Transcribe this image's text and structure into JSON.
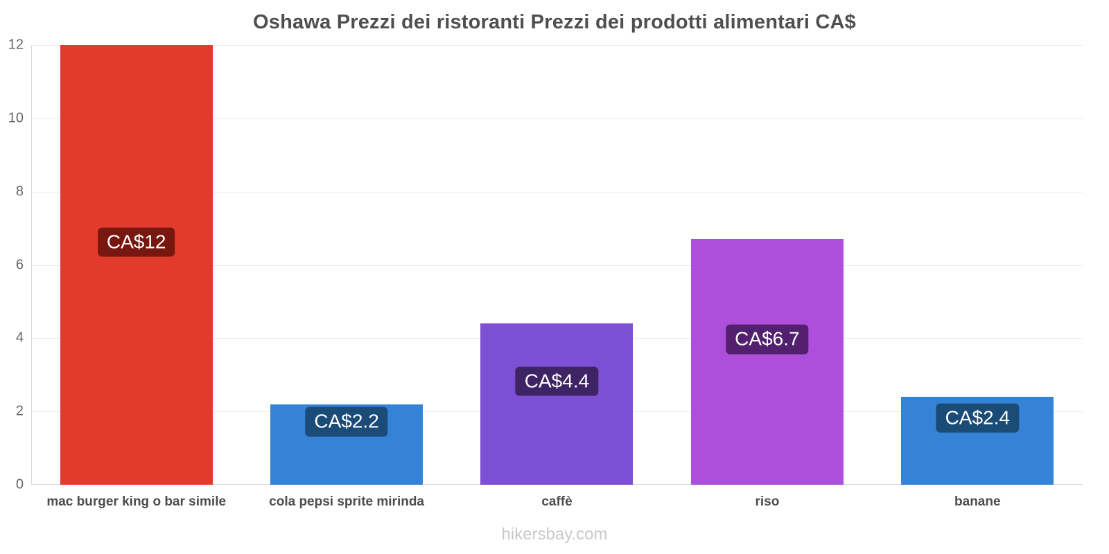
{
  "title": "Oshawa Prezzi dei ristoranti Prezzi dei prodotti alimentari CA$",
  "watermark": "hikersbay.com",
  "chart_data": {
    "type": "bar",
    "title": "Oshawa Prezzi dei ristoranti Prezzi dei prodotti alimentari CA$",
    "categories": [
      "mac burger king o bar simile",
      "cola pepsi sprite mirinda",
      "caffè",
      "riso",
      "banane"
    ],
    "values": [
      12,
      2.2,
      4.4,
      6.7,
      2.4
    ],
    "value_labels": [
      "CA$12",
      "CA$2.2",
      "CA$4.4",
      "CA$6.7",
      "CA$2.4"
    ],
    "currency": "CA$",
    "bar_colors": [
      "#e23b2e",
      "#3583d6",
      "#7d4fd4",
      "#ae4fdb",
      "#3583d6"
    ],
    "label_bg_colors": [
      "#77170f",
      "#1b4b77",
      "#3e2365",
      "#52206f",
      "#1b4b77"
    ],
    "xlabel": "",
    "ylabel": "",
    "ylim": [
      0,
      12
    ],
    "y_ticks": [
      0,
      2,
      4,
      6,
      8,
      10,
      12
    ],
    "grid": true,
    "legend": false,
    "watermark": "hikersbay.com"
  }
}
